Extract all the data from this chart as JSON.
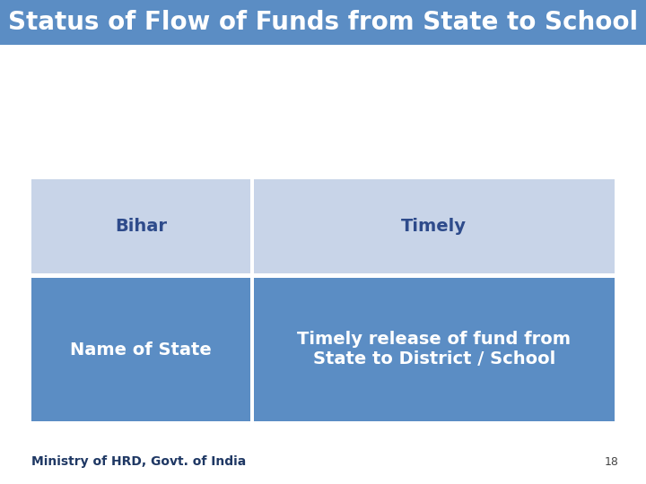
{
  "title": "Status of Flow of Funds from State to School",
  "title_bg_color": "#5B8DC4",
  "title_text_color": "#FFFFFF",
  "title_fontsize": 20,
  "header_bg_color": "#5B8DC4",
  "header_text_color": "#FFFFFF",
  "row_bg_color": "#C8D4E8",
  "row_text_color": "#2E4B8B",
  "col1_header": "Name of State",
  "col2_header": "Timely release of fund from\nState to District / School",
  "col1_data": "Bihar",
  "col2_data": "Timely",
  "footer_text": "Ministry of HRD, Govt. of India",
  "footer_text_color": "#1F3864",
  "page_number": "18",
  "bg_color": "#FFFFFF",
  "header_fontsize": 14,
  "data_fontsize": 14,
  "footer_fontsize": 10,
  "gap_color": "#FFFFFF"
}
